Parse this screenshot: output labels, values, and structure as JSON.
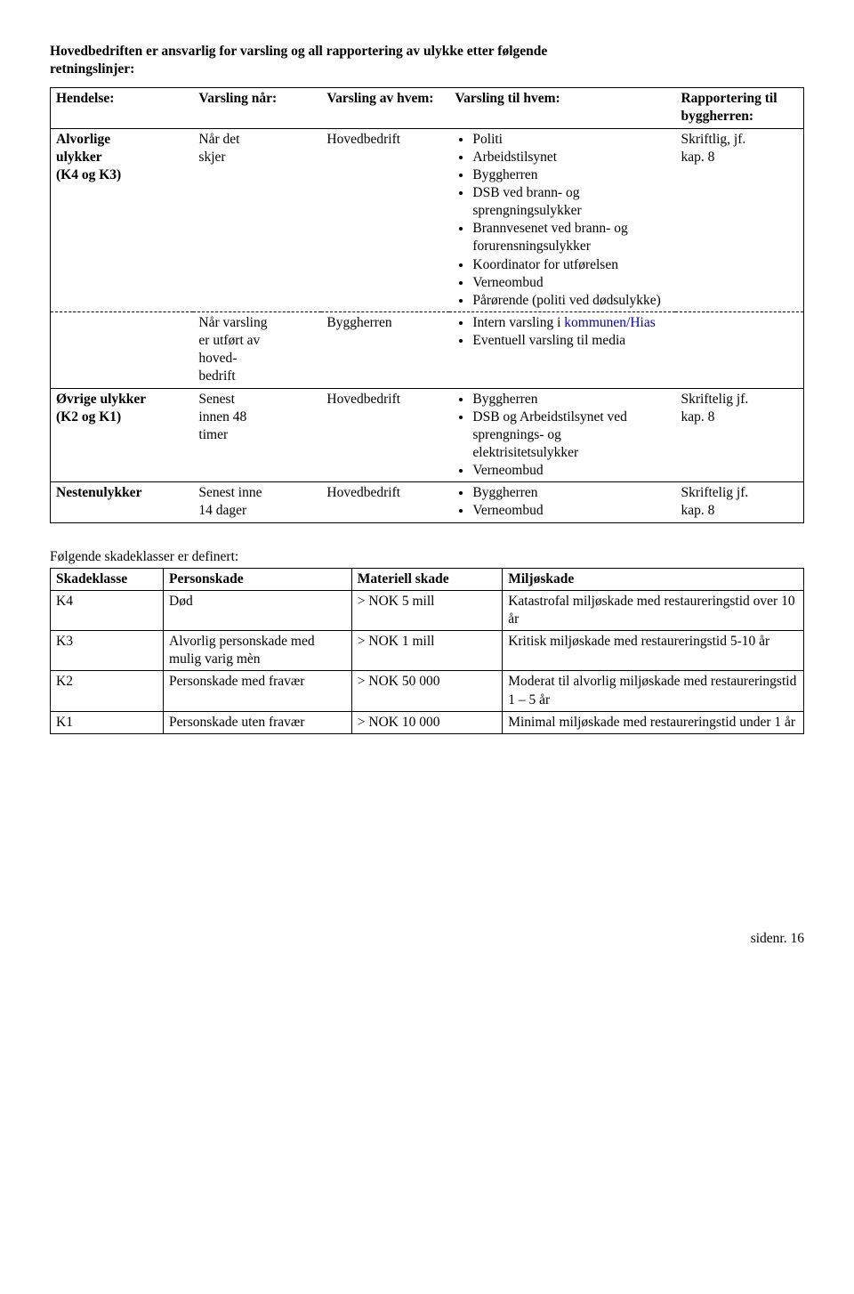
{
  "intro": {
    "line1": "Hovedbedriften er ansvarlig for varsling og all rapportering av ulykke etter følgende",
    "line2": "retningslinjer:"
  },
  "table1": {
    "headers": {
      "hendelse": "Hendelse:",
      "nar": "Varsling når:",
      "av": "Varsling av hvem:",
      "til": "Varsling til hvem:",
      "rapp": "Rapportering til byggherren:"
    },
    "rows": [
      {
        "hendelse_l1": "Alvorlige",
        "hendelse_l2": "ulykker",
        "hendelse_l3": "(K4 og K3)",
        "nar_l1": "Når det",
        "nar_l2": "skjer",
        "av": "Hovedbedrift",
        "til": [
          "Politi",
          "Arbeidstilsynet",
          "Byggherren",
          "DSB ved brann- og sprengningsulykker",
          "Brannvesenet ved brann- og forurensningsulykker",
          "Koordinator for utførelsen",
          "Verneombud",
          "Pårørende (politi ved dødsulykke)"
        ],
        "rapp_l1": "Skriftlig, jf.",
        "rapp_l2": "kap. 8"
      },
      {
        "hendelse": "",
        "nar_l1": "Når varsling",
        "nar_l2": "er utført av",
        "nar_l3": "hoved-",
        "nar_l4": "bedrift",
        "av": "Byggherren",
        "til_b1_pre": "Intern varsling i ",
        "til_b1_blue": "kommunen/Hias",
        "til_b2": "Eventuell varsling til media",
        "rapp": ""
      },
      {
        "hendelse_l1": "Øvrige ulykker",
        "hendelse_l2": "(K2 og K1)",
        "nar_l1": "Senest",
        "nar_l2": "innen 48",
        "nar_l3": "timer",
        "av": "Hovedbedrift",
        "til": [
          "Byggherren",
          "DSB og Arbeidstilsynet ved sprengnings- og elektrisitetsulykker",
          "Verneombud"
        ],
        "rapp_l1": "Skriftelig jf.",
        "rapp_l2": "kap. 8"
      },
      {
        "hendelse": "Nestenulykker",
        "nar_l1": "Senest inne",
        "nar_l2": "14 dager",
        "av": "Hovedbedrift",
        "til": [
          "Byggherren",
          "Verneombud"
        ],
        "rapp_l1": "Skriftelig jf.",
        "rapp_l2": "kap. 8"
      }
    ]
  },
  "defn_intro": "Følgende skadeklasser er definert:",
  "table2": {
    "headers": {
      "klasse": "Skadeklasse",
      "person": "Personskade",
      "materiell": "Materiell skade",
      "miljo": "Miljøskade"
    },
    "rows": [
      {
        "klasse": "K4",
        "person": "Død",
        "materiell": "> NOK 5 mill",
        "miljo": "Katastrofal miljøskade med restaureringstid over 10 år"
      },
      {
        "klasse": "K3",
        "person": "Alvorlig personskade med mulig varig mèn",
        "materiell": ">  NOK 1 mill",
        "miljo": "Kritisk miljøskade med restaureringstid 5-10 år"
      },
      {
        "klasse": "K2",
        "person": "Personskade med fravær",
        "materiell": "> NOK 50 000",
        "miljo": "Moderat til alvorlig miljøskade med restaureringstid 1 – 5 år"
      },
      {
        "klasse": "K1",
        "person": "Personskade uten fravær",
        "materiell": "> NOK 10 000",
        "miljo": "Minimal miljøskade med restaureringstid under 1 år"
      }
    ]
  },
  "footer": "sidenr. 16"
}
